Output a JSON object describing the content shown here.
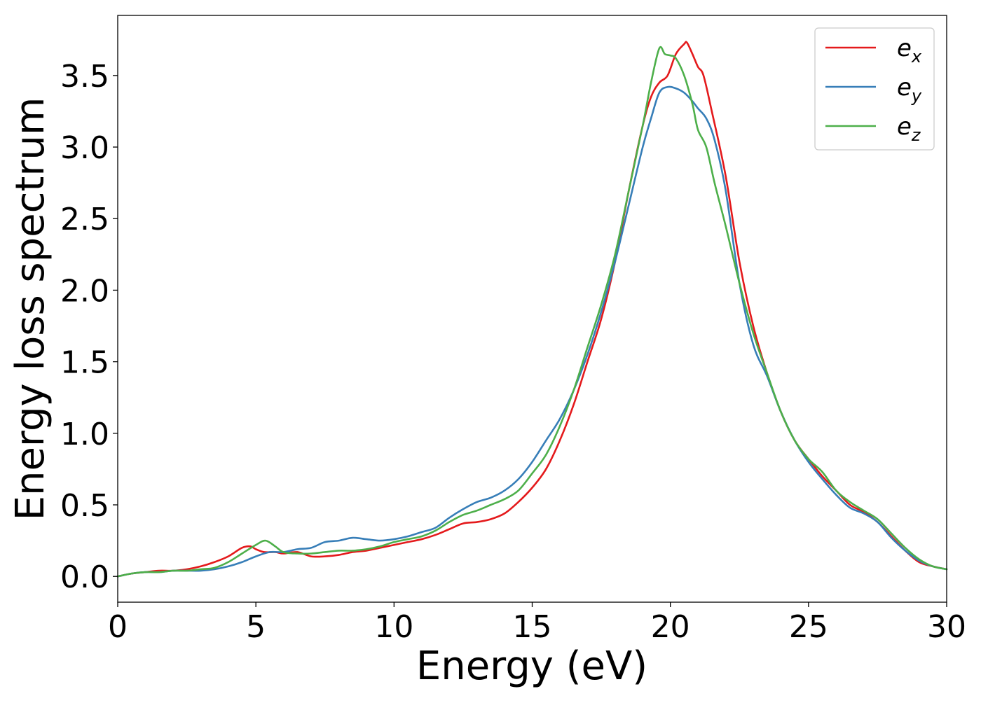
{
  "chart_data": {
    "type": "line",
    "title": "",
    "xlabel": "Energy (eV)",
    "ylabel": "Energy loss spectrum",
    "xlim": [
      0,
      30
    ],
    "ylim": [
      -0.18,
      3.92
    ],
    "xticks": [
      0,
      5,
      10,
      15,
      20,
      25,
      30
    ],
    "xtick_labels": [
      "0",
      "5",
      "10",
      "15",
      "20",
      "25",
      "30"
    ],
    "yticks": [
      0.0,
      0.5,
      1.0,
      1.5,
      2.0,
      2.5,
      3.0,
      3.5
    ],
    "ytick_labels": [
      "0.0",
      "0.5",
      "1.0",
      "1.5",
      "2.0",
      "2.5",
      "3.0",
      "3.5"
    ],
    "grid": false,
    "legend_position": "top-right",
    "series": [
      {
        "name": "e_x",
        "legend_base": "e",
        "legend_sub": "x",
        "color": "#e41a1c",
        "x": [
          0,
          0.5,
          1,
          1.5,
          2,
          2.5,
          3,
          3.5,
          4,
          4.5,
          4.8,
          5,
          5.3,
          5.7,
          6,
          6.5,
          7,
          7.5,
          8,
          8.5,
          9,
          9.5,
          10,
          10.5,
          11,
          11.5,
          12,
          12.5,
          13,
          13.5,
          14,
          14.5,
          15,
          15.5,
          16,
          16.5,
          17,
          17.5,
          18,
          18.5,
          19,
          19.3,
          19.6,
          19.9,
          20.2,
          20.5,
          20.6,
          20.8,
          21,
          21.2,
          21.5,
          22,
          22.5,
          23,
          23.5,
          24,
          24.5,
          25,
          25.5,
          26,
          26.5,
          27,
          27.5,
          28,
          28.5,
          29,
          29.5,
          30
        ],
        "y": [
          0.0,
          0.02,
          0.03,
          0.04,
          0.04,
          0.05,
          0.07,
          0.1,
          0.14,
          0.2,
          0.21,
          0.19,
          0.17,
          0.17,
          0.16,
          0.17,
          0.14,
          0.14,
          0.15,
          0.17,
          0.18,
          0.2,
          0.22,
          0.24,
          0.26,
          0.29,
          0.33,
          0.37,
          0.38,
          0.4,
          0.44,
          0.52,
          0.62,
          0.75,
          0.95,
          1.2,
          1.5,
          1.8,
          2.2,
          2.7,
          3.15,
          3.35,
          3.45,
          3.5,
          3.65,
          3.72,
          3.73,
          3.65,
          3.56,
          3.5,
          3.25,
          2.8,
          2.2,
          1.75,
          1.42,
          1.15,
          0.95,
          0.82,
          0.7,
          0.6,
          0.5,
          0.45,
          0.38,
          0.28,
          0.18,
          0.1,
          0.07,
          0.05
        ]
      },
      {
        "name": "e_y",
        "legend_base": "e",
        "legend_sub": "y",
        "color": "#377eb8",
        "x": [
          0,
          0.5,
          1,
          1.5,
          2,
          2.5,
          3,
          3.5,
          4,
          4.5,
          5,
          5.5,
          6,
          6.5,
          7,
          7.5,
          8,
          8.5,
          9,
          9.5,
          10,
          10.5,
          11,
          11.5,
          12,
          12.5,
          13,
          13.5,
          14,
          14.5,
          15,
          15.5,
          16,
          16.5,
          17,
          17.5,
          18,
          18.5,
          19,
          19.3,
          19.6,
          19.9,
          20.2,
          20.5,
          20.8,
          21,
          21.3,
          21.6,
          22,
          22.5,
          23,
          23.5,
          24,
          24.5,
          25,
          25.5,
          26,
          26.5,
          27,
          27.5,
          28,
          28.5,
          29,
          29.5,
          30
        ],
        "y": [
          0.0,
          0.02,
          0.03,
          0.03,
          0.04,
          0.04,
          0.04,
          0.05,
          0.07,
          0.1,
          0.14,
          0.17,
          0.17,
          0.19,
          0.2,
          0.24,
          0.25,
          0.27,
          0.26,
          0.25,
          0.26,
          0.28,
          0.31,
          0.34,
          0.41,
          0.47,
          0.52,
          0.55,
          0.6,
          0.68,
          0.8,
          0.95,
          1.1,
          1.3,
          1.55,
          1.85,
          2.2,
          2.6,
          3.0,
          3.2,
          3.38,
          3.42,
          3.41,
          3.38,
          3.32,
          3.27,
          3.2,
          3.05,
          2.7,
          2.05,
          1.62,
          1.4,
          1.15,
          0.95,
          0.8,
          0.68,
          0.57,
          0.48,
          0.44,
          0.38,
          0.27,
          0.18,
          0.11,
          0.07,
          0.05
        ]
      },
      {
        "name": "e_z",
        "legend_base": "e",
        "legend_sub": "z",
        "color": "#4daf4a",
        "x": [
          0,
          0.5,
          1,
          1.5,
          2,
          2.5,
          3,
          3.5,
          4,
          4.5,
          5,
          5.35,
          5.7,
          6,
          6.5,
          7,
          7.5,
          8,
          8.5,
          9,
          9.5,
          10,
          10.5,
          11,
          11.5,
          12,
          12.5,
          13,
          13.5,
          14,
          14.5,
          15,
          15.5,
          16,
          16.5,
          17,
          17.5,
          18,
          18.5,
          19,
          19.3,
          19.6,
          19.8,
          20,
          20.2,
          20.5,
          20.8,
          21,
          21.3,
          21.6,
          22,
          22.5,
          23,
          23.5,
          24,
          24.5,
          25,
          25.5,
          26,
          26.5,
          27,
          27.5,
          28,
          28.5,
          29,
          29.5,
          30
        ],
        "y": [
          0.0,
          0.02,
          0.03,
          0.03,
          0.04,
          0.04,
          0.05,
          0.06,
          0.1,
          0.16,
          0.22,
          0.25,
          0.21,
          0.17,
          0.16,
          0.16,
          0.17,
          0.18,
          0.18,
          0.19,
          0.21,
          0.24,
          0.26,
          0.28,
          0.32,
          0.38,
          0.43,
          0.46,
          0.5,
          0.54,
          0.6,
          0.72,
          0.85,
          1.05,
          1.3,
          1.6,
          1.9,
          2.25,
          2.7,
          3.15,
          3.45,
          3.69,
          3.65,
          3.64,
          3.62,
          3.5,
          3.3,
          3.12,
          3.0,
          2.75,
          2.45,
          2.05,
          1.7,
          1.42,
          1.15,
          0.95,
          0.82,
          0.73,
          0.6,
          0.52,
          0.46,
          0.4,
          0.3,
          0.2,
          0.12,
          0.07,
          0.05
        ]
      }
    ]
  }
}
